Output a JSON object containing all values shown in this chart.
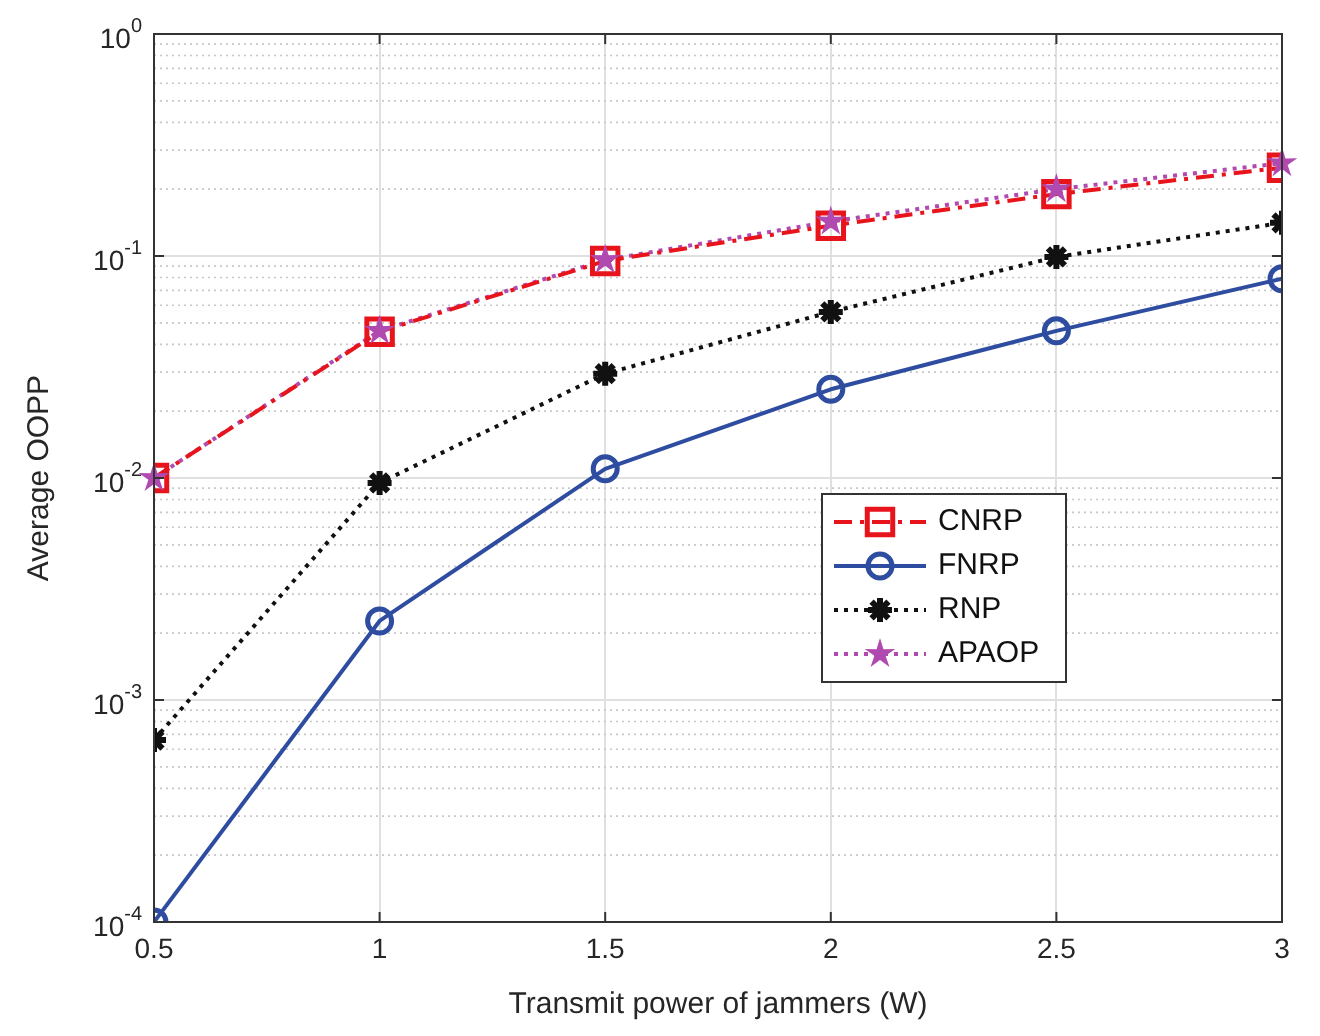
{
  "chart_data": {
    "type": "line",
    "xlabel": "Transmit power of jammers (W)",
    "ylabel": "Average OOPP",
    "x": [
      0.5,
      1,
      1.5,
      2,
      2.5,
      3
    ],
    "series": [
      {
        "name": "CNRP",
        "color": "#e8141c",
        "marker": "square",
        "line_style": "dashed",
        "values": [
          0.01,
          0.0456,
          0.095,
          0.137,
          0.19,
          0.25
        ]
      },
      {
        "name": "FNRP",
        "color": "#2f4da0",
        "marker": "circle",
        "line_style": "solid",
        "values": [
          0.0001,
          0.00227,
          0.011,
          0.0251,
          0.046,
          0.079
        ]
      },
      {
        "name": "RNP",
        "color": "#111111",
        "marker": "cross",
        "line_style": "dotted",
        "values": [
          0.00066,
          0.0095,
          0.0295,
          0.056,
          0.099,
          0.141
        ]
      },
      {
        "name": "APAOP",
        "color": "#b04ab0",
        "marker": "star",
        "line_style": "dotted",
        "values": [
          0.01,
          0.046,
          0.096,
          0.143,
          0.2,
          0.262
        ]
      }
    ],
    "xlim": [
      0.5,
      3
    ],
    "xticks": [
      0.5,
      1,
      1.5,
      2,
      2.5,
      3
    ],
    "ylim": [
      0.0001,
      1
    ],
    "yticks": [
      {
        "value": 0.0001,
        "label": "10$^{-4}$"
      },
      {
        "value": 0.001,
        "label": "10$^{-3}$"
      },
      {
        "value": 0.01,
        "label": "10$^{-2}$"
      },
      {
        "value": 0.1,
        "label": "10$^{-1}$"
      },
      {
        "value": 1,
        "label": "10$^{0}$"
      }
    ],
    "log": "y",
    "grid": true,
    "legend": "center right"
  }
}
